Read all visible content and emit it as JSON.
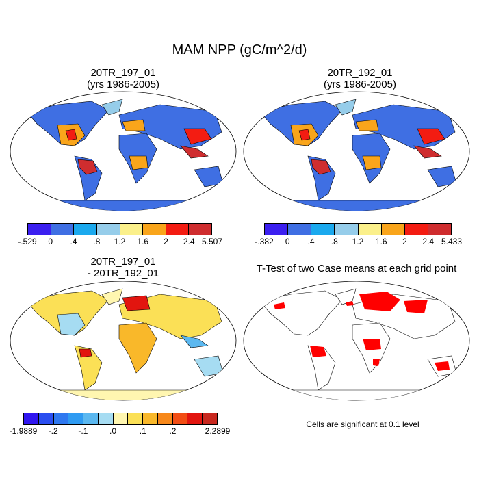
{
  "title": "MAM NPP (gC/m^2/d)",
  "panels": {
    "top_left": {
      "title_line1": "20TR_197_01",
      "title_line2": "(yrs 1986-2005)"
    },
    "top_right": {
      "title_line1": "20TR_192_01",
      "title_line2": "(yrs 1986-2005)"
    },
    "bottom_left": {
      "title_line1": "20TR_197_01",
      "title_line2": "- 20TR_192_01"
    },
    "bottom_right": {
      "title_line1": "T-Test of two Case means at each grid point"
    }
  },
  "colorbars": {
    "top_left": {
      "colors": [
        "#3b1ff0",
        "#3f6fe3",
        "#1ba9ee",
        "#96cdea",
        "#fbf08b",
        "#f9a51b",
        "#f31c12",
        "#cf2d2f"
      ],
      "labels": [
        "-.529",
        "0",
        ".4",
        ".8",
        "1.2",
        "1.6",
        "2",
        "2.4",
        "5.507"
      ]
    },
    "top_right": {
      "colors": [
        "#3b1ff0",
        "#3f6fe3",
        "#1ba9ee",
        "#96cdea",
        "#fbf08b",
        "#f9a51b",
        "#f31c12",
        "#cf2d2f"
      ],
      "labels": [
        "-.382",
        "0",
        ".4",
        ".8",
        "1.2",
        "1.6",
        "2",
        "2.4",
        "5.433"
      ]
    },
    "bottom_left": {
      "colors": [
        "#3016f0",
        "#2a4ef0",
        "#2f78f0",
        "#2f9bf2",
        "#5bb8f0",
        "#a6dcf2",
        "#fff6b0",
        "#fbe056",
        "#f9b82a",
        "#f7881a",
        "#f24d14",
        "#e2150f",
        "#c8281f"
      ],
      "labels": [
        "-1.9889",
        "",
        "-.2",
        "",
        "-.1",
        "",
        ".0",
        "",
        ".1",
        "",
        ".2",
        "",
        "",
        "2.2899"
      ]
    }
  },
  "significance_note": "Cells are significant at 0.1 level"
}
